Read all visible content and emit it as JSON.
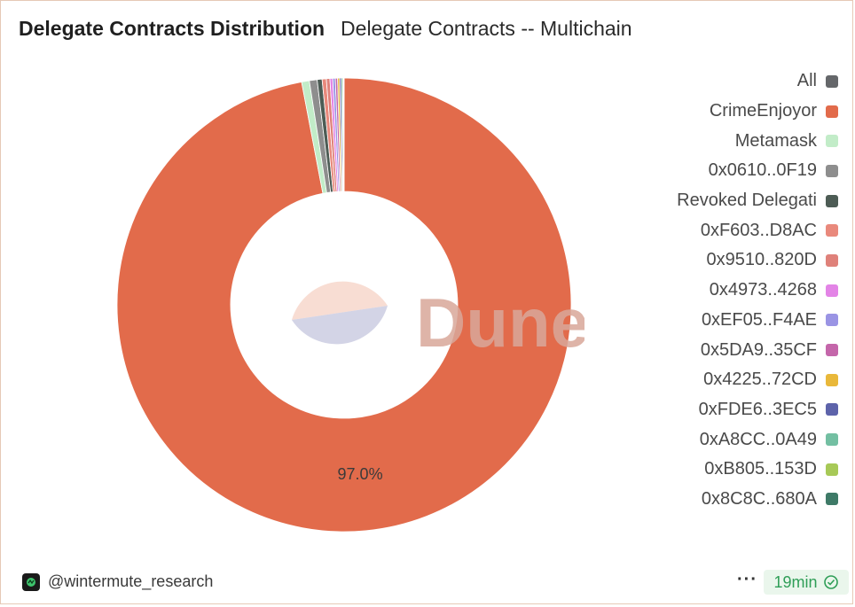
{
  "header": {
    "title": "Delegate Contracts Distribution",
    "subtitle": "Delegate Contracts -- Multichain"
  },
  "watermark": {
    "text": "Dune"
  },
  "footer": {
    "author": "@wintermute_research",
    "more_label": "···",
    "refresh_label": "19min",
    "icons": {
      "avatar": "wintermute-logo-icon",
      "refresh": "check-circle-icon"
    }
  },
  "chart_data": {
    "type": "pie",
    "variant": "donut",
    "title": "",
    "start": "12 o'clock",
    "direction": "clockwise",
    "series": [
      {
        "name": "CrimeEnjoyor",
        "value": 97.0,
        "label": "97.0%",
        "color": "#e26b4b"
      },
      {
        "name": "Metamask",
        "value": 0.55,
        "color": "#c2ecc8"
      },
      {
        "name": "0x0610..0F19",
        "value": 0.55,
        "color": "#8e8e8e"
      },
      {
        "name": "Revoked Delegati",
        "value": 0.35,
        "color": "#4d5c55"
      },
      {
        "name": "0xF603..D8AC",
        "value": 0.3,
        "color": "#e9897c"
      },
      {
        "name": "0x9510..820D",
        "value": 0.25,
        "color": "#df817a"
      },
      {
        "name": "0x4973..4268",
        "value": 0.2,
        "color": "#e384e6"
      },
      {
        "name": "0xEF05..F4AE",
        "value": 0.18,
        "color": "#9a94e4"
      },
      {
        "name": "0x5DA9..35CF",
        "value": 0.16,
        "color": "#c466aa"
      },
      {
        "name": "0x4225..72CD",
        "value": 0.14,
        "color": "#e9b83a"
      },
      {
        "name": "0xFDE6..3EC5",
        "value": 0.12,
        "color": "#5d63aa"
      },
      {
        "name": "0xA8CC..0A49",
        "value": 0.1,
        "color": "#73bfa2"
      },
      {
        "name": "0xB805..153D",
        "value": 0.06,
        "color": "#a7c957"
      },
      {
        "name": "0x8C8C..680A",
        "value": 0.04,
        "color": "#3e7a67"
      }
    ],
    "legend": [
      {
        "name": "All",
        "color": "#65676a"
      },
      {
        "name": "CrimeEnjoyor",
        "color": "#e26b4b"
      },
      {
        "name": "Metamask",
        "color": "#c2ecc8"
      },
      {
        "name": "0x0610..0F19",
        "color": "#8e8e8e"
      },
      {
        "name": "Revoked Delegati",
        "color": "#4d5c55"
      },
      {
        "name": "0xF603..D8AC",
        "color": "#e9897c"
      },
      {
        "name": "0x9510..820D",
        "color": "#df817a"
      },
      {
        "name": "0x4973..4268",
        "color": "#e384e6"
      },
      {
        "name": "0xEF05..F4AE",
        "color": "#9a94e4"
      },
      {
        "name": "0x5DA9..35CF",
        "color": "#c466aa"
      },
      {
        "name": "0x4225..72CD",
        "color": "#e9b83a"
      },
      {
        "name": "0xFDE6..3EC5",
        "color": "#5d63aa"
      },
      {
        "name": "0xA8CC..0A49",
        "color": "#73bfa2"
      },
      {
        "name": "0xB805..153D",
        "color": "#a7c957"
      },
      {
        "name": "0x8C8C..680A",
        "color": "#3e7a67"
      }
    ],
    "legend_position": "right"
  }
}
